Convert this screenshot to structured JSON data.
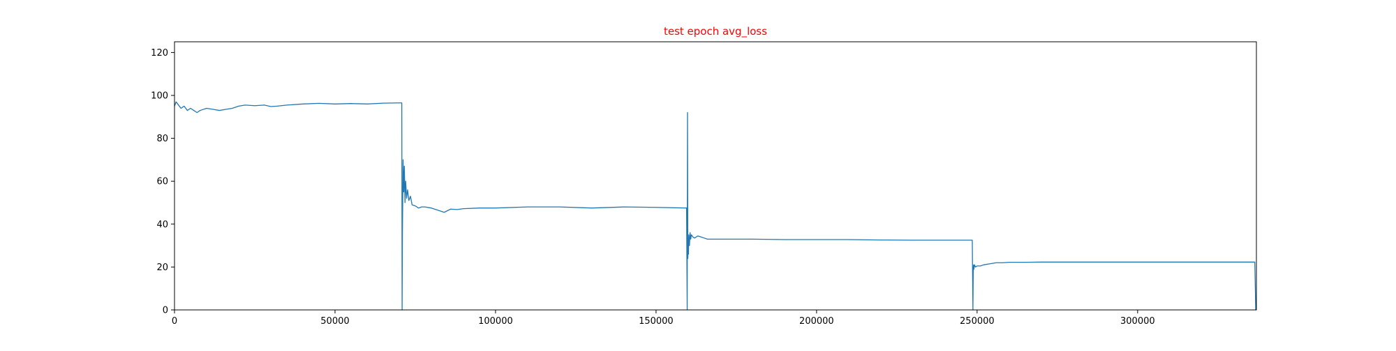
{
  "chart_data": {
    "type": "line",
    "title": "test epoch avg_loss",
    "title_color": "#ff0000",
    "xlabel": "",
    "ylabel": "",
    "xlim": [
      0,
      337000
    ],
    "ylim": [
      0,
      125
    ],
    "xticks": [
      0,
      50000,
      100000,
      150000,
      200000,
      250000,
      300000
    ],
    "yticks": [
      0,
      20,
      40,
      60,
      80,
      100,
      120
    ],
    "grid": false,
    "legend": "none",
    "series": [
      {
        "color": "#1f77b4",
        "x": [
          0,
          500,
          1000,
          2000,
          3000,
          4000,
          5000,
          6000,
          7000,
          8000,
          10000,
          12000,
          14000,
          16000,
          18000,
          20000,
          22000,
          25000,
          28000,
          30000,
          32000,
          35000,
          40000,
          45000,
          50000,
          55000,
          60000,
          65000,
          70000,
          70800,
          70900,
          71000,
          71200,
          71400,
          71600,
          71800,
          72000,
          72300,
          72600,
          73000,
          73500,
          74000,
          75000,
          76000,
          77000,
          78000,
          80000,
          82000,
          84000,
          86000,
          88000,
          90000,
          95000,
          100000,
          110000,
          120000,
          130000,
          140000,
          150000,
          159500,
          159700,
          159800,
          159900,
          160000,
          160100,
          160200,
          160400,
          160600,
          160800,
          161000,
          161500,
          162000,
          163000,
          164000,
          165000,
          166000,
          168000,
          170000,
          175000,
          180000,
          190000,
          200000,
          210000,
          220000,
          230000,
          240000,
          248500,
          248700,
          248800,
          248900,
          249000,
          249200,
          249500,
          250000,
          251000,
          252000,
          254000,
          256000,
          258000,
          260000,
          265000,
          270000,
          280000,
          290000,
          300000,
          310000,
          320000,
          330000,
          336500,
          336800,
          337000
        ],
        "y": [
          95,
          97,
          96,
          94,
          95,
          93,
          94,
          93,
          92,
          93,
          94,
          93.5,
          93,
          93.5,
          94,
          95,
          95.5,
          95.2,
          95.5,
          94.8,
          95,
          95.5,
          96,
          96.3,
          96,
          96.2,
          96,
          96.4,
          96.5,
          96.5,
          0,
          36,
          70,
          55,
          67,
          50,
          60,
          52,
          56,
          51,
          53,
          49,
          48.5,
          47.5,
          48,
          48,
          47.5,
          46.5,
          45.5,
          47,
          46.8,
          47.2,
          47.5,
          47.5,
          48,
          48,
          47.5,
          48,
          47.8,
          47.5,
          0,
          92,
          24,
          30,
          26,
          35,
          30,
          36,
          33,
          35,
          34,
          33.5,
          34.5,
          34,
          33.5,
          33,
          33,
          33,
          33,
          33,
          32.8,
          32.8,
          32.8,
          32.6,
          32.5,
          32.5,
          32.5,
          0,
          18,
          21,
          19,
          21,
          20,
          20.5,
          20.5,
          21,
          21.5,
          22,
          22,
          22.2,
          22.2,
          22.3,
          22.3,
          22.3,
          22.3,
          22.3,
          22.3,
          22.3,
          22.3,
          0,
          0
        ]
      }
    ]
  }
}
